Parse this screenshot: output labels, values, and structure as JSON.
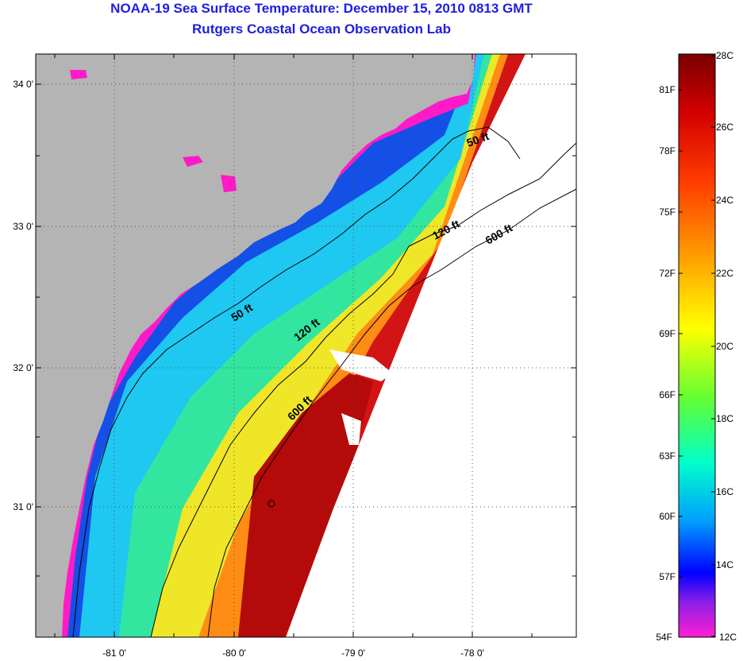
{
  "header": {
    "title": "NOAA-19 Sea Surface Temperature:  December 15, 2010 0813 GMT",
    "subtitle": "Rutgers Coastal Ocean Observation Lab"
  },
  "map": {
    "lat_ticks": [
      "34 0'",
      "33 0'",
      "32 0'",
      "31 0'"
    ],
    "lon_ticks": [
      "-81 0'",
      "-80 0'",
      "-79 0'",
      "-78 0'"
    ],
    "contours": [
      {
        "label": "50 ft"
      },
      {
        "label": "50 ft"
      },
      {
        "label": "120 ft"
      },
      {
        "label": "120 ft"
      },
      {
        "label": "600 ft"
      },
      {
        "label": "600 ft"
      }
    ],
    "colors": {
      "land": "#b4b4b4",
      "no_data": "#ffffff"
    }
  },
  "colorbar": {
    "celsius": [
      "28C",
      "26C",
      "24C",
      "22C",
      "20C",
      "18C",
      "16C",
      "14C",
      "12C"
    ],
    "fahrenheit": [
      "81F",
      "78F",
      "75F",
      "72F",
      "69F",
      "66F",
      "63F",
      "60F",
      "57F",
      "54F"
    ],
    "range_c": [
      12,
      28
    ]
  }
}
